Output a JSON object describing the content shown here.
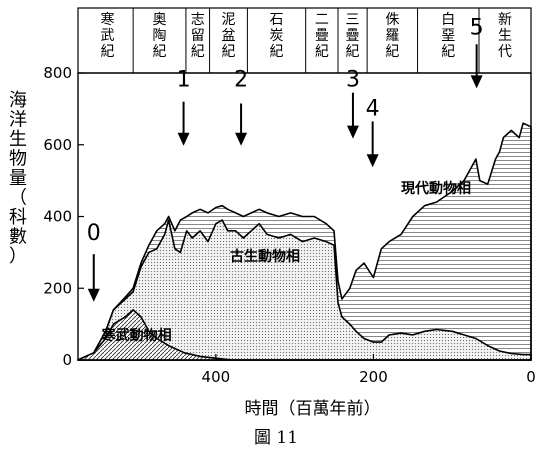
{
  "chart_data": {
    "type": "area",
    "title": "",
    "caption": "圖 11",
    "xlabel": "時間（百萬年前）",
    "ylabel": "海洋生物量（科數）",
    "x_reversed": true,
    "xlim": [
      575,
      0
    ],
    "ylim": [
      0,
      800
    ],
    "x_ticks": [
      400,
      200,
      0
    ],
    "y_ticks": [
      0,
      200,
      400,
      600,
      800
    ],
    "periods": [
      {
        "label": "寒武紀",
        "start": 570,
        "end": 505
      },
      {
        "label": "奧陶紀",
        "start": 505,
        "end": 438
      },
      {
        "label": "志留紀",
        "start": 438,
        "end": 408
      },
      {
        "label": "泥盆紀",
        "start": 408,
        "end": 360
      },
      {
        "label": "石炭紀",
        "start": 360,
        "end": 286
      },
      {
        "label": "二疊紀",
        "start": 286,
        "end": 245
      },
      {
        "label": "三疊紀",
        "start": 245,
        "end": 208
      },
      {
        "label": "侏羅紀",
        "start": 208,
        "end": 144
      },
      {
        "label": "白堊紀",
        "start": 144,
        "end": 66
      },
      {
        "label": "新生代",
        "start": 66,
        "end": 0
      }
    ],
    "series": [
      {
        "name": "寒武動物相",
        "x": [
          575,
          555,
          540,
          530,
          515,
          505,
          495,
          485,
          475,
          460,
          440,
          420,
          400,
          380,
          360,
          300,
          250,
          200,
          100,
          0
        ],
        "y": [
          0,
          20,
          60,
          100,
          120,
          140,
          120,
          80,
          60,
          40,
          20,
          10,
          5,
          0,
          0,
          0,
          0,
          0,
          0,
          0
        ]
      },
      {
        "name": "古生動物相",
        "x": [
          575,
          555,
          540,
          530,
          515,
          505,
          495,
          485,
          475,
          465,
          460,
          452,
          445,
          437,
          430,
          420,
          410,
          400,
          392,
          385,
          375,
          365,
          355,
          345,
          335,
          320,
          305,
          290,
          275,
          260,
          250,
          245,
          240,
          230,
          222,
          212,
          200,
          190,
          180,
          165,
          150,
          135,
          120,
          100,
          85,
          70,
          55,
          40,
          25,
          10,
          0
        ],
        "y": [
          0,
          20,
          80,
          140,
          170,
          190,
          260,
          300,
          310,
          350,
          390,
          310,
          300,
          360,
          340,
          360,
          330,
          380,
          390,
          360,
          360,
          340,
          360,
          380,
          350,
          340,
          350,
          330,
          340,
          330,
          320,
          160,
          120,
          100,
          80,
          60,
          50,
          50,
          70,
          75,
          70,
          80,
          85,
          80,
          70,
          60,
          40,
          25,
          18,
          15,
          15
        ]
      },
      {
        "name": "現代動物相",
        "x": [
          575,
          555,
          540,
          530,
          515,
          505,
          495,
          485,
          475,
          465,
          460,
          452,
          445,
          437,
          430,
          420,
          410,
          400,
          392,
          385,
          375,
          365,
          355,
          345,
          335,
          320,
          305,
          290,
          275,
          260,
          250,
          245,
          240,
          230,
          222,
          212,
          200,
          190,
          180,
          165,
          150,
          135,
          120,
          100,
          85,
          70,
          65,
          55,
          45,
          40,
          35,
          25,
          15,
          10,
          0
        ],
        "y": [
          0,
          20,
          80,
          140,
          175,
          200,
          270,
          320,
          360,
          380,
          400,
          360,
          390,
          400,
          410,
          420,
          410,
          425,
          430,
          420,
          410,
          400,
          410,
          420,
          410,
          400,
          410,
          400,
          400,
          380,
          360,
          220,
          170,
          200,
          250,
          270,
          230,
          310,
          330,
          350,
          400,
          430,
          440,
          470,
          500,
          560,
          500,
          490,
          560,
          580,
          620,
          640,
          620,
          660,
          650
        ]
      }
    ],
    "events": [
      {
        "label": "0",
        "x": 555,
        "arrow_from": 295,
        "arrow_to": 165,
        "label_y": 318
      },
      {
        "label": "1",
        "x": 441,
        "arrow_from": 720,
        "arrow_to": 600,
        "label_y": 745
      },
      {
        "label": "2",
        "x": 368,
        "arrow_from": 715,
        "arrow_to": 600,
        "label_y": 745
      },
      {
        "label": "3",
        "x": 226,
        "arrow_from": 745,
        "arrow_to": 620,
        "label_y": 745
      },
      {
        "label": "4",
        "x": 201,
        "arrow_from": 665,
        "arrow_to": 540,
        "label_y": 665
      },
      {
        "label": "5",
        "x": 69,
        "arrow_from": 880,
        "arrow_to": 760,
        "label_y": 890
      }
    ],
    "region_labels": [
      {
        "text": "寒武動物相",
        "x": 545,
        "y": 70
      },
      {
        "text": "古生動物相",
        "x": 382,
        "y": 290
      },
      {
        "text": "現代動物相",
        "x": 165,
        "y": 480
      }
    ]
  }
}
